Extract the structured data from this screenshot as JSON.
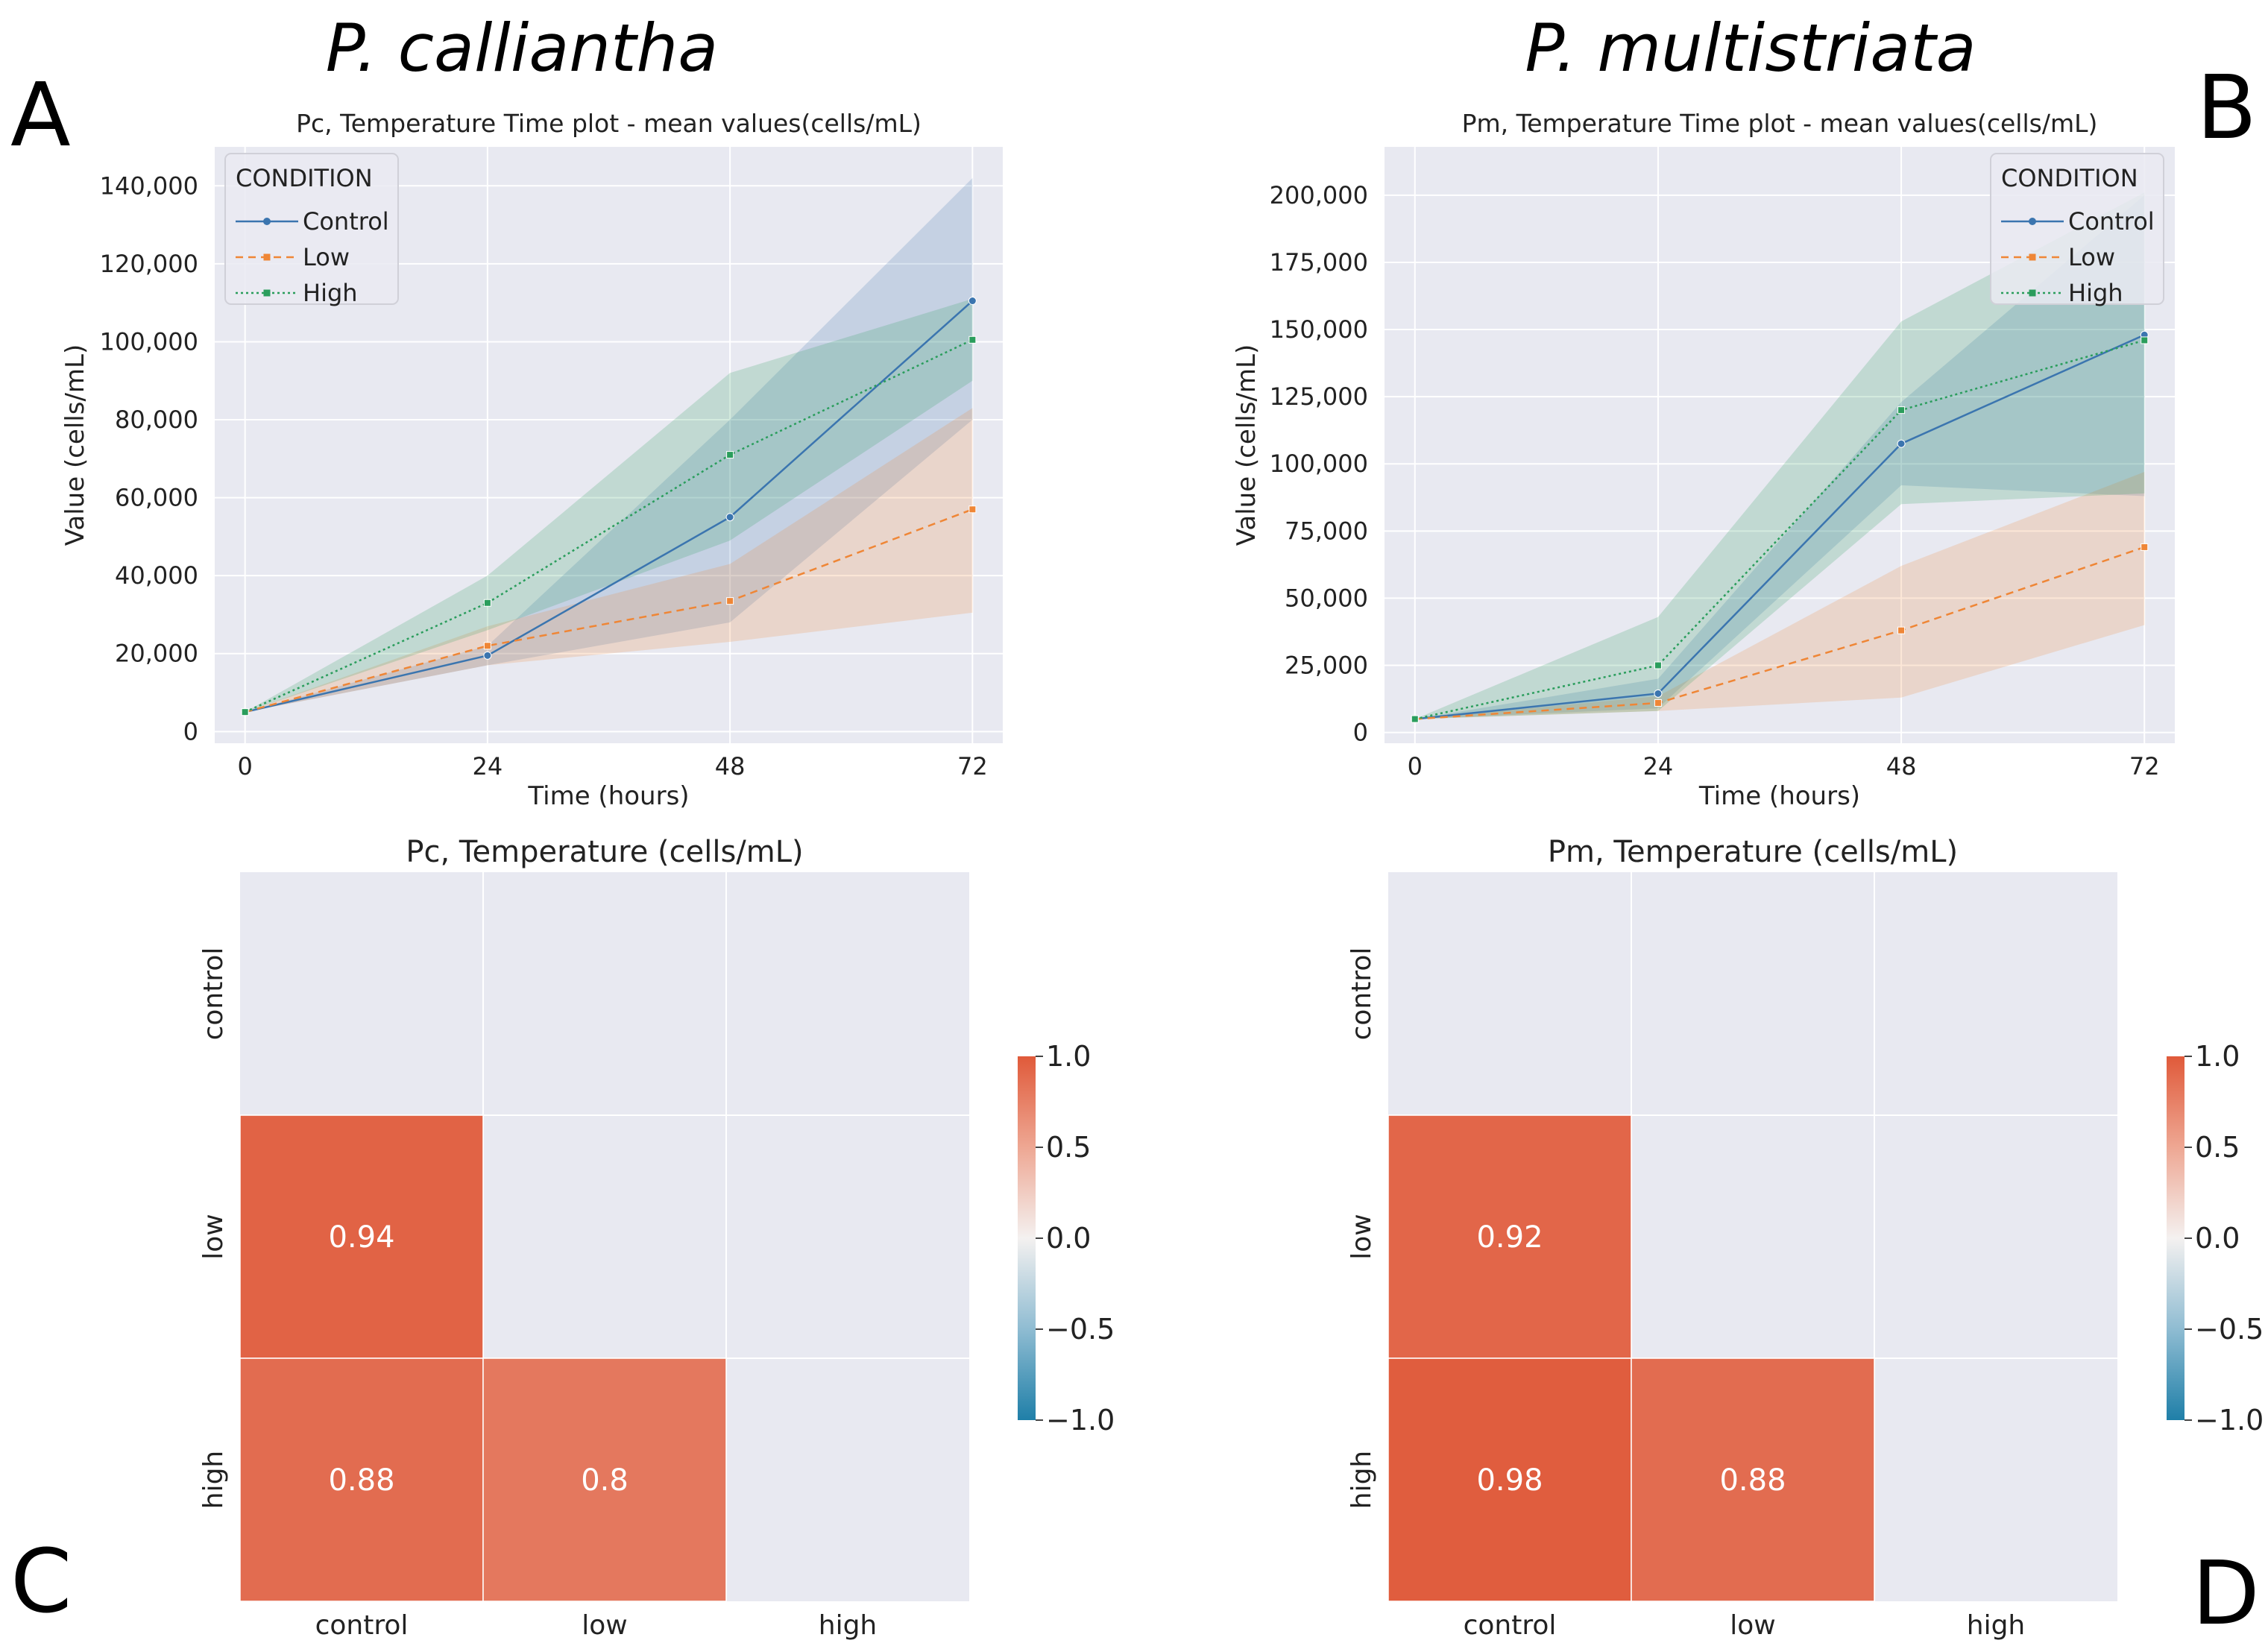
{
  "species": {
    "left": "P. calliantha",
    "right": "P. multistriata"
  },
  "panel_letters": {
    "a": "A",
    "b": "B",
    "c": "C",
    "d": "D"
  },
  "colors": {
    "control": "#3b75af",
    "low": "#ef8636",
    "high": "#2a9d5c",
    "axes_bg": "#e8e9f1",
    "heat_pos": "#e05a3a",
    "heat_neg": "#1f7fa8"
  },
  "legend": {
    "title": "CONDITION"
  },
  "chart_data": [
    {
      "id": "A",
      "type": "line",
      "title": "Pc, Temperature Time plot - mean values(cells/mL)",
      "xlabel": "Time (hours)",
      "ylabel": "Value (cells/mL)",
      "x": [
        0,
        24,
        48,
        72
      ],
      "x_ticks": [
        "0",
        "24",
        "48",
        "72"
      ],
      "xlim": [
        -3,
        75
      ],
      "ylim": [
        -3000,
        150000
      ],
      "y_ticks": [
        0,
        20000,
        40000,
        60000,
        80000,
        100000,
        120000,
        140000
      ],
      "y_tick_labels": [
        "0",
        "20,000",
        "40,000",
        "60,000",
        "80,000",
        "100,000",
        "120,000",
        "140,000"
      ],
      "legend_position": "top-left",
      "series": [
        {
          "name": "Control",
          "key": "control",
          "values": [
            5000,
            19500,
            55000,
            110500
          ],
          "lower": [
            5000,
            17000,
            28000,
            80000
          ],
          "upper": [
            5000,
            22000,
            80000,
            142000
          ]
        },
        {
          "name": "Low",
          "key": "low",
          "values": [
            5000,
            22000,
            33500,
            57000
          ],
          "lower": [
            5000,
            17000,
            23000,
            30500
          ],
          "upper": [
            5000,
            27000,
            43000,
            83000
          ]
        },
        {
          "name": "High",
          "key": "high",
          "values": [
            5000,
            33000,
            71000,
            100500
          ],
          "lower": [
            5000,
            26000,
            49000,
            90000
          ],
          "upper": [
            5000,
            40000,
            92000,
            111000
          ]
        }
      ]
    },
    {
      "id": "B",
      "type": "line",
      "title": "Pm, Temperature Time plot - mean values(cells/mL)",
      "xlabel": "Time (hours)",
      "ylabel": "Value (cells/mL)",
      "x": [
        0,
        24,
        48,
        72
      ],
      "x_ticks": [
        "0",
        "24",
        "48",
        "72"
      ],
      "xlim": [
        -3,
        75
      ],
      "ylim": [
        -4000,
        218000
      ],
      "y_ticks": [
        0,
        25000,
        50000,
        75000,
        100000,
        125000,
        150000,
        175000,
        200000
      ],
      "y_tick_labels": [
        "0",
        "25,000",
        "50,000",
        "75,000",
        "100,000",
        "125,000",
        "150,000",
        "175,000",
        "200,000"
      ],
      "legend_position": "top-right",
      "series": [
        {
          "name": "Control",
          "key": "control",
          "values": [
            5000,
            14500,
            107500,
            148000
          ],
          "lower": [
            5000,
            9000,
            92000,
            88000
          ],
          "upper": [
            5000,
            20000,
            123000,
            200000
          ]
        },
        {
          "name": "Low",
          "key": "low",
          "values": [
            5000,
            11000,
            38000,
            69000
          ],
          "lower": [
            5000,
            8000,
            13000,
            40000
          ],
          "upper": [
            5000,
            13500,
            62000,
            97000
          ]
        },
        {
          "name": "High",
          "key": "high",
          "values": [
            5000,
            25000,
            120000,
            146000
          ],
          "lower": [
            5000,
            8000,
            85000,
            89000
          ],
          "upper": [
            5000,
            43000,
            153000,
            201000
          ]
        }
      ]
    },
    {
      "id": "C",
      "type": "heatmap",
      "title": "Pc, Temperature (cells/mL)",
      "x_labels": [
        "control",
        "low",
        "high"
      ],
      "y_labels": [
        "control",
        "low",
        "high"
      ],
      "cells": [
        {
          "row": 1,
          "col": 0,
          "value": 0.94,
          "label": "0.94"
        },
        {
          "row": 2,
          "col": 0,
          "value": 0.88,
          "label": "0.88"
        },
        {
          "row": 2,
          "col": 1,
          "value": 0.8,
          "label": "0.8"
        }
      ],
      "colorbar": {
        "range": [
          -1.0,
          1.0
        ],
        "ticks": [
          "1.0",
          "0.5",
          "0.0",
          "−0.5",
          "−1.0"
        ]
      }
    },
    {
      "id": "D",
      "type": "heatmap",
      "title": "Pm, Temperature (cells/mL)",
      "x_labels": [
        "control",
        "low",
        "high"
      ],
      "y_labels": [
        "control",
        "low",
        "high"
      ],
      "cells": [
        {
          "row": 1,
          "col": 0,
          "value": 0.92,
          "label": "0.92"
        },
        {
          "row": 2,
          "col": 0,
          "value": 0.98,
          "label": "0.98"
        },
        {
          "row": 2,
          "col": 1,
          "value": 0.88,
          "label": "0.88"
        }
      ],
      "colorbar": {
        "range": [
          -1.0,
          1.0
        ],
        "ticks": [
          "1.0",
          "0.5",
          "0.0",
          "−0.5",
          "−1.0"
        ]
      }
    }
  ]
}
